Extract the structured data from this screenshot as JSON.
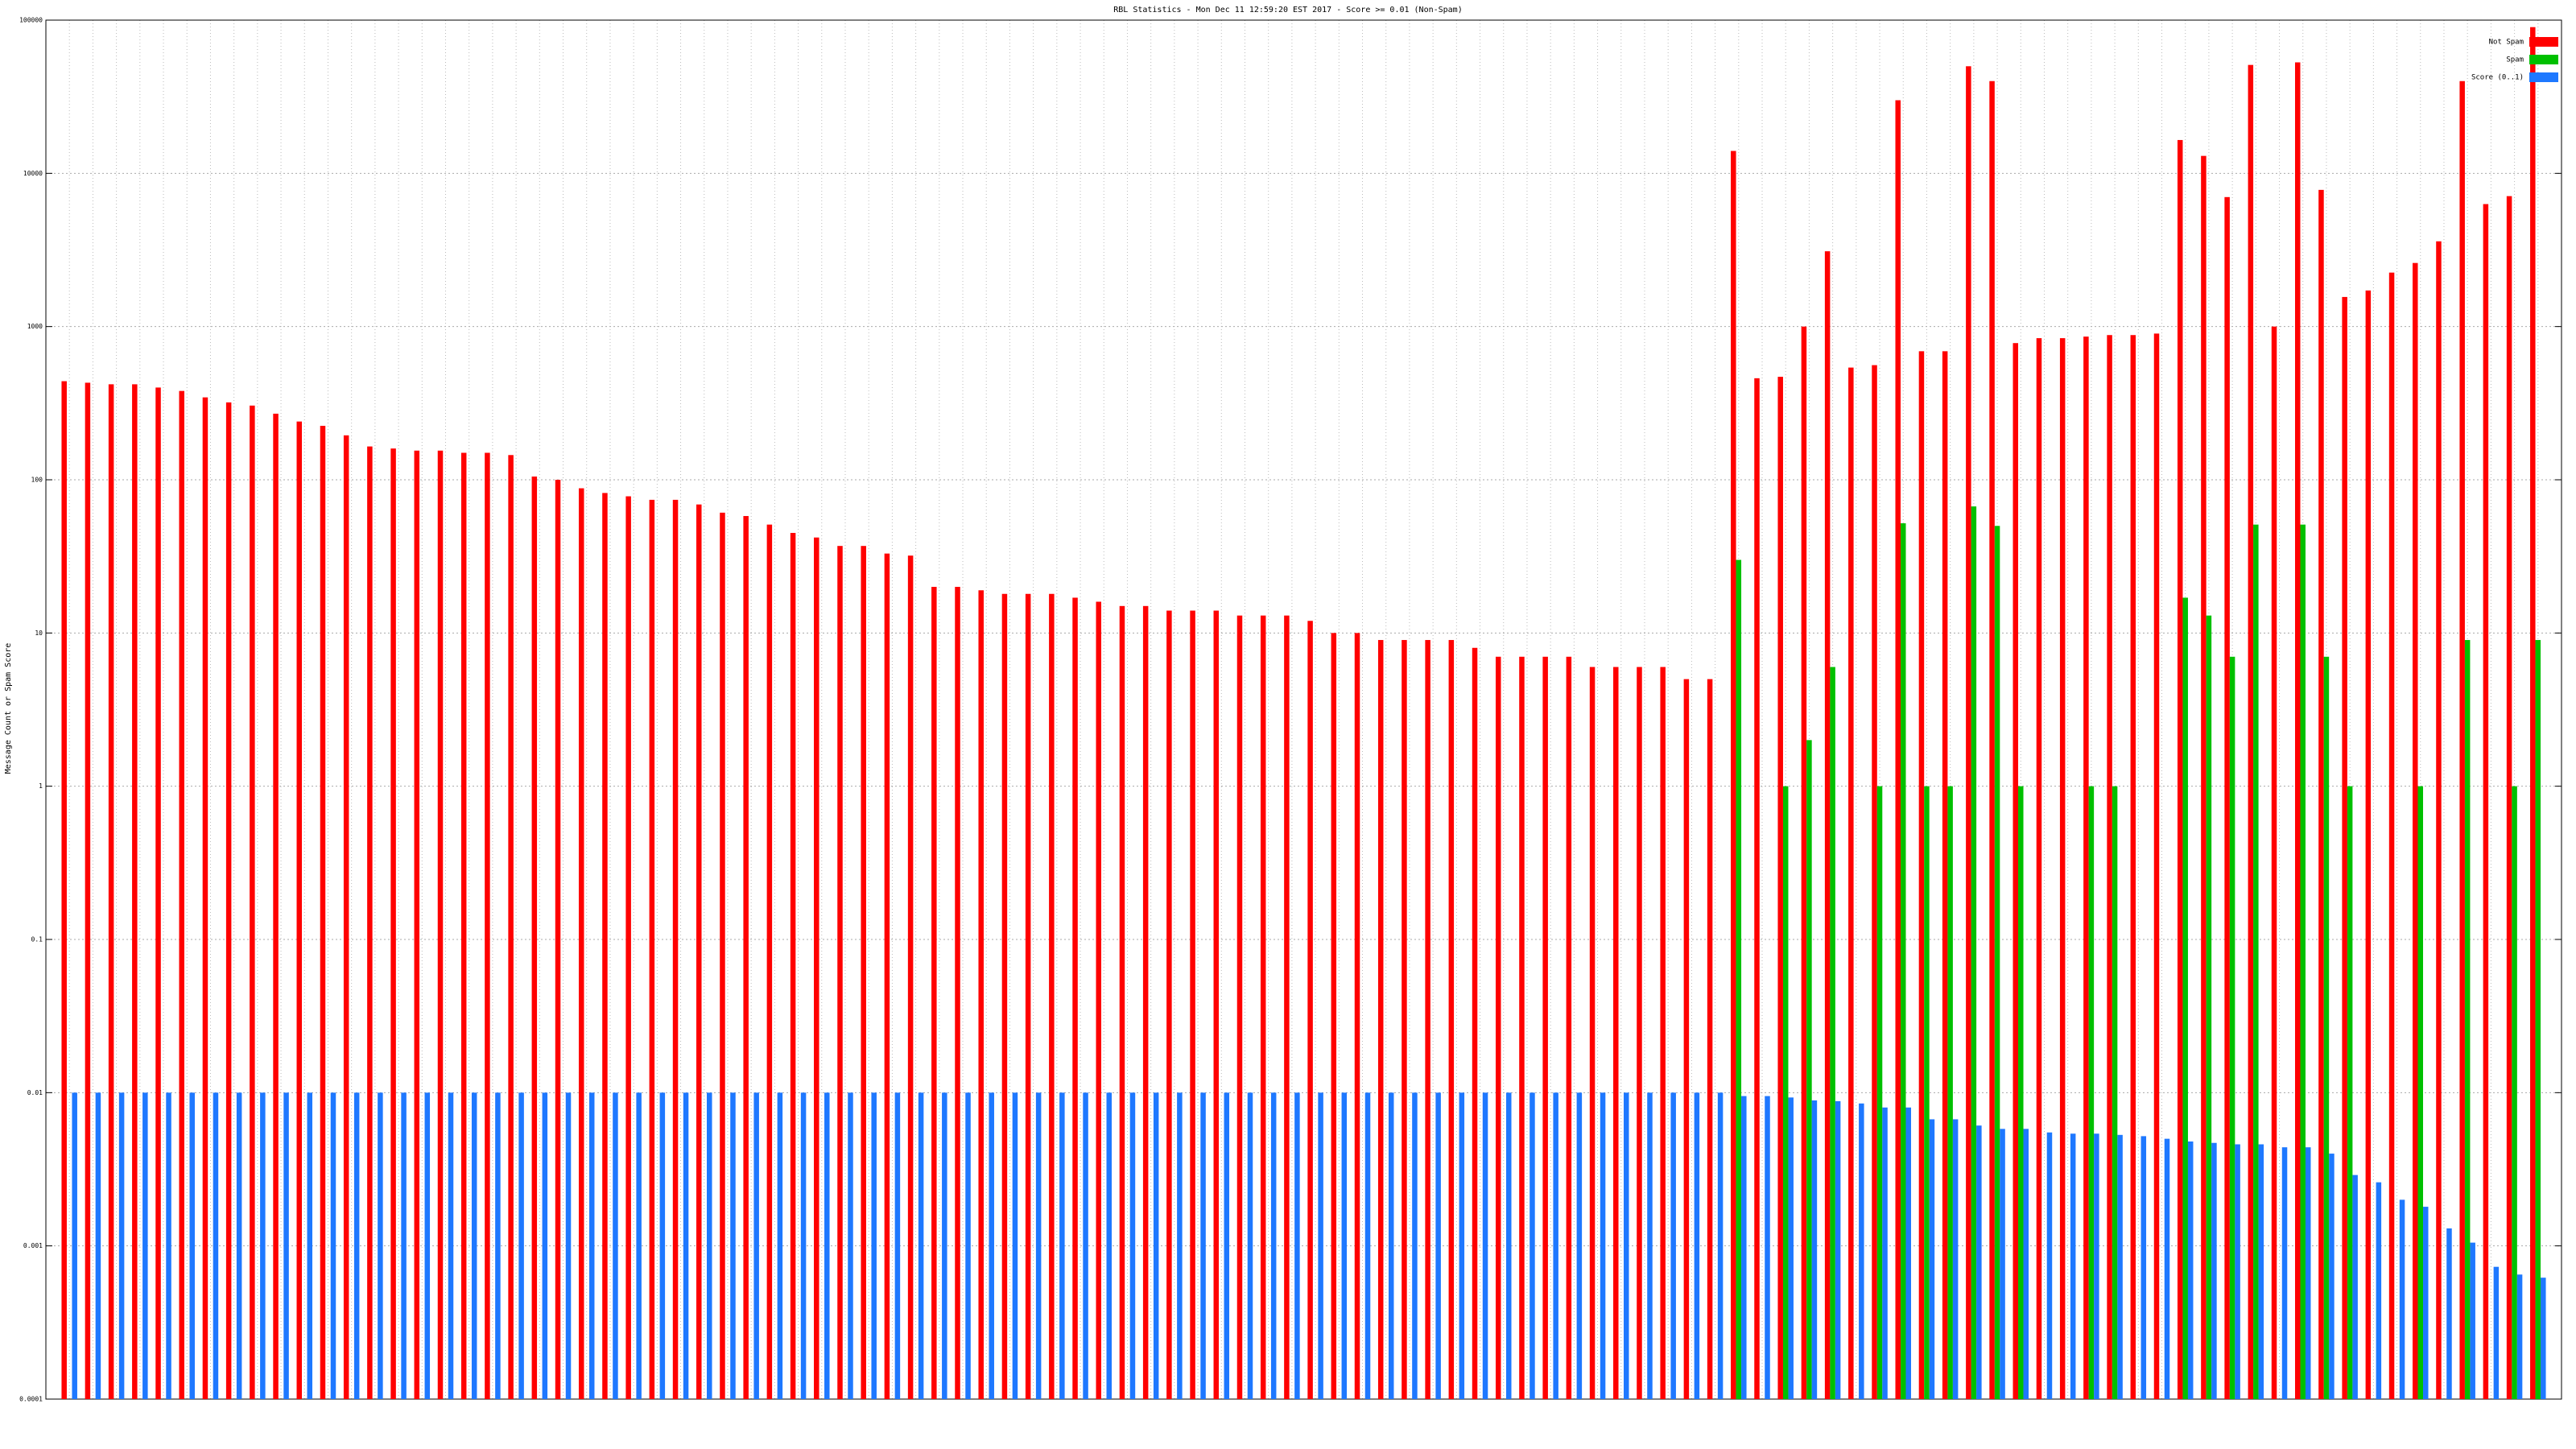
{
  "chart_data": {
    "type": "bar",
    "title": "RBL Statistics - Mon Dec 11 12:59:20 EST 2017 - Score >= 0.01 (Non-Spam)",
    "y_label": "Message Count or Spam Score",
    "log_y": true,
    "grid": true,
    "legend": "top-right",
    "ylim": [
      0.0001,
      100000
    ],
    "yticks": [
      0.0001,
      0.001,
      0.01,
      0.1,
      1,
      10,
      100,
      1000,
      10000,
      100000
    ],
    "categories": [
      null,
      null,
      null,
      null,
      null,
      null,
      null,
      null,
      null,
      null,
      null,
      null,
      null,
      null,
      null,
      null,
      null,
      null,
      null,
      null,
      null,
      null,
      null,
      null,
      null,
      null,
      null,
      null,
      null,
      null,
      null,
      null,
      null,
      null,
      null,
      null,
      null,
      null,
      null,
      null,
      null,
      null,
      null,
      null,
      null,
      null,
      null,
      null,
      null,
      null,
      null,
      null,
      null,
      null,
      null,
      null,
      null,
      null,
      null,
      null,
      null,
      null,
      null,
      null,
      null,
      null,
      null,
      null,
      null,
      null,
      null,
      null,
      null,
      null,
      null,
      null,
      null,
      null,
      null,
      null,
      null,
      null,
      null,
      null,
      null,
      null,
      null,
      null,
      null,
      null,
      null,
      null,
      null,
      null,
      null,
      null,
      null,
      null,
      null,
      null,
      null,
      null,
      null,
      null,
      null,
      null
    ],
    "series": [
      {
        "name": "Not Spam",
        "color": "#ff0000",
        "values": [
          440,
          430,
          420,
          420,
          400,
          380,
          345,
          320,
          305,
          270,
          240,
          225,
          195,
          165,
          160,
          155,
          155,
          150,
          150,
          145,
          105,
          100,
          88,
          82,
          78,
          74,
          74,
          69,
          61,
          58,
          51,
          45,
          42,
          37,
          37,
          33,
          32,
          20,
          20,
          19,
          18,
          18,
          18,
          17,
          16,
          15,
          15,
          14,
          14,
          14,
          13,
          13,
          13,
          12,
          10,
          10,
          9,
          9,
          9,
          9,
          8,
          7,
          7,
          7,
          7,
          6,
          6,
          6,
          6,
          5,
          5,
          14000,
          460,
          470,
          1000,
          3100,
          540,
          560,
          30000,
          690,
          690,
          50000,
          40000,
          780,
          840,
          840,
          860,
          880,
          880,
          900,
          16500,
          13000,
          7000,
          51000,
          1000,
          53000,
          7800,
          1560,
          1720,
          2250,
          2600,
          3600,
          40000,
          6300,
          7100,
          90000
        ]
      },
      {
        "name": "Spam",
        "color": "#00c000",
        "values": [
          null,
          null,
          null,
          null,
          null,
          null,
          null,
          null,
          null,
          null,
          null,
          null,
          null,
          null,
          null,
          null,
          null,
          null,
          null,
          null,
          null,
          null,
          null,
          null,
          null,
          null,
          null,
          null,
          null,
          null,
          null,
          null,
          null,
          null,
          null,
          null,
          null,
          null,
          null,
          null,
          null,
          null,
          null,
          null,
          null,
          null,
          null,
          null,
          null,
          null,
          null,
          null,
          null,
          null,
          null,
          null,
          null,
          null,
          null,
          null,
          null,
          null,
          null,
          null,
          null,
          null,
          null,
          null,
          null,
          null,
          null,
          30,
          null,
          1,
          2,
          6,
          null,
          1,
          52,
          1,
          1,
          67,
          50,
          1,
          null,
          null,
          1,
          1,
          null,
          null,
          17,
          13,
          7,
          51,
          null,
          51,
          7,
          1,
          null,
          null,
          1,
          null,
          9,
          null,
          1,
          9
        ]
      },
      {
        "name": "Score (0..1)",
        "color": "#1e78ff",
        "values": [
          0.01,
          0.01,
          0.01,
          0.01,
          0.01,
          0.01,
          0.01,
          0.01,
          0.01,
          0.01,
          0.01,
          0.01,
          0.01,
          0.01,
          0.01,
          0.01,
          0.01,
          0.01,
          0.01,
          0.01,
          0.01,
          0.01,
          0.01,
          0.01,
          0.01,
          0.01,
          0.01,
          0.01,
          0.01,
          0.01,
          0.01,
          0.01,
          0.01,
          0.01,
          0.01,
          0.01,
          0.01,
          0.01,
          0.01,
          0.01,
          0.01,
          0.01,
          0.01,
          0.01,
          0.01,
          0.01,
          0.01,
          0.01,
          0.01,
          0.01,
          0.01,
          0.01,
          0.01,
          0.01,
          0.01,
          0.01,
          0.01,
          0.01,
          0.01,
          0.01,
          0.01,
          0.01,
          0.01,
          0.01,
          0.01,
          0.01,
          0.01,
          0.01,
          0.01,
          0.01,
          0.01,
          0.0095,
          0.0095,
          0.0093,
          0.0089,
          0.0088,
          0.0085,
          0.008,
          0.008,
          0.0067,
          0.0067,
          0.0061,
          0.0058,
          0.0058,
          0.0055,
          0.0054,
          0.0054,
          0.0053,
          0.0052,
          0.005,
          0.0048,
          0.0047,
          0.0046,
          0.0046,
          0.0044,
          0.0044,
          0.004,
          0.0029,
          0.0026,
          0.002,
          0.0018,
          0.0013,
          0.00105,
          0.00073,
          0.00065,
          0.00062
        ]
      }
    ]
  }
}
